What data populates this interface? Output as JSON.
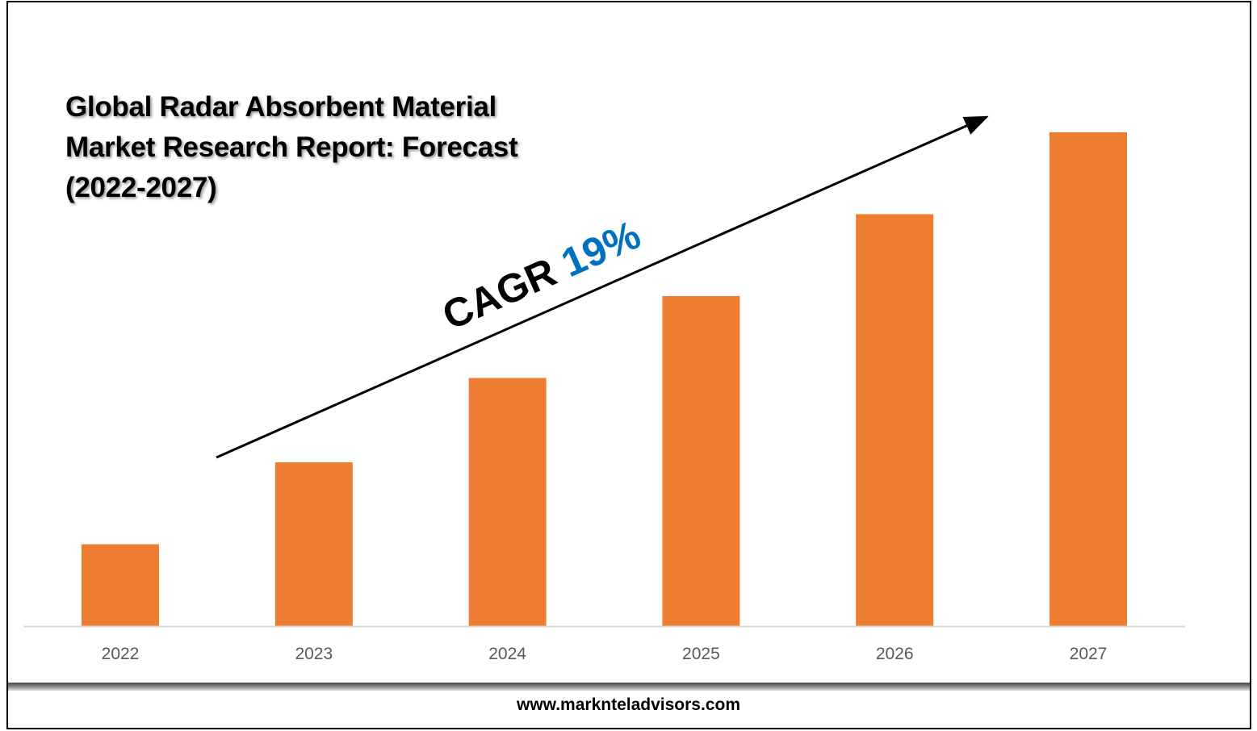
{
  "title_lines": [
    "Global Radar Absorbent Material",
    "Market Research Report: Forecast",
    "(2022-2027)"
  ],
  "annotation": {
    "label": "CAGR",
    "value": "19%"
  },
  "footer": "www.marknteladvisors.com",
  "colors": {
    "bar": "#ed7d31",
    "cagr": "#0070c0",
    "axis": "#d9d9d9",
    "tick": "#595959"
  },
  "chart_data": {
    "type": "bar",
    "title": "Global Radar Absorbent Material Market Research Report: Forecast (2022-2027)",
    "categories": [
      "2022",
      "2023",
      "2024",
      "2025",
      "2026",
      "2027"
    ],
    "values": [
      1,
      2,
      3.03,
      4.03,
      5.03,
      6.03
    ],
    "value_units": "relative (no value axis shown)",
    "xlabel": "",
    "ylabel": "",
    "ylim": [
      0,
      6.5
    ],
    "grid": false,
    "legend": "none"
  }
}
